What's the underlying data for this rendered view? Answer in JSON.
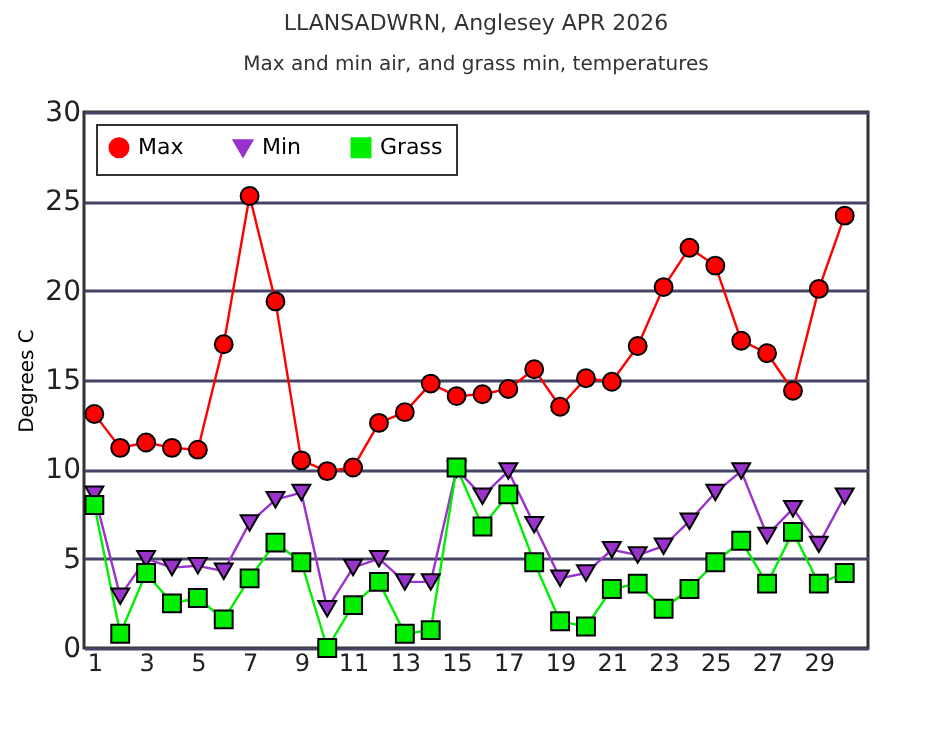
{
  "chart_data": {
    "type": "line",
    "title": "LLANSADWRN, Anglesey APR 2026",
    "subtitle": "Max and min air, and grass min, temperatures",
    "ylabel": "Degrees C",
    "x": [
      1,
      2,
      3,
      4,
      5,
      6,
      7,
      8,
      9,
      10,
      11,
      12,
      13,
      14,
      15,
      16,
      17,
      18,
      19,
      20,
      21,
      22,
      23,
      24,
      25,
      26,
      27,
      28,
      29,
      30
    ],
    "xlim": [
      0.6,
      30.9
    ],
    "xticks": [
      1,
      3,
      5,
      7,
      9,
      11,
      13,
      15,
      17,
      19,
      21,
      23,
      25,
      27,
      29
    ],
    "ylim": [
      0,
      30
    ],
    "yticks": [
      0,
      5,
      10,
      15,
      20,
      25,
      30
    ],
    "grid": "y",
    "legend": "top left",
    "line_style": "solid",
    "series": [
      {
        "name": "Max",
        "color": "#ff0000",
        "marker": "circle",
        "values": [
          13.1,
          11.2,
          11.5,
          11.2,
          11.1,
          17.0,
          25.3,
          19.4,
          10.5,
          9.9,
          10.1,
          12.6,
          13.2,
          14.8,
          14.1,
          14.2,
          14.5,
          15.6,
          13.5,
          15.1,
          14.9,
          16.9,
          20.2,
          22.4,
          21.4,
          17.2,
          16.5,
          14.4,
          20.1,
          24.2
        ]
      },
      {
        "name": "Min",
        "color": "#9933cc",
        "marker": "triangle",
        "values": [
          8.6,
          2.9,
          5.0,
          4.5,
          4.6,
          4.3,
          7.0,
          8.3,
          8.7,
          2.2,
          4.5,
          5.0,
          3.7,
          3.7,
          10.0,
          8.5,
          9.9,
          6.9,
          3.9,
          4.2,
          5.5,
          5.2,
          5.7,
          7.1,
          8.7,
          9.9,
          6.3,
          7.8,
          5.8,
          8.5
        ]
      },
      {
        "name": "Grass",
        "color": "#00ee00",
        "marker": "square",
        "values": [
          8.0,
          0.8,
          4.2,
          2.5,
          2.8,
          1.6,
          3.9,
          5.9,
          4.8,
          0.0,
          2.4,
          3.7,
          0.8,
          1.0,
          10.1,
          6.8,
          8.6,
          4.8,
          1.5,
          1.2,
          3.3,
          3.6,
          2.2,
          3.3,
          4.8,
          6.0,
          3.6,
          6.5,
          3.6,
          4.2
        ]
      }
    ]
  }
}
